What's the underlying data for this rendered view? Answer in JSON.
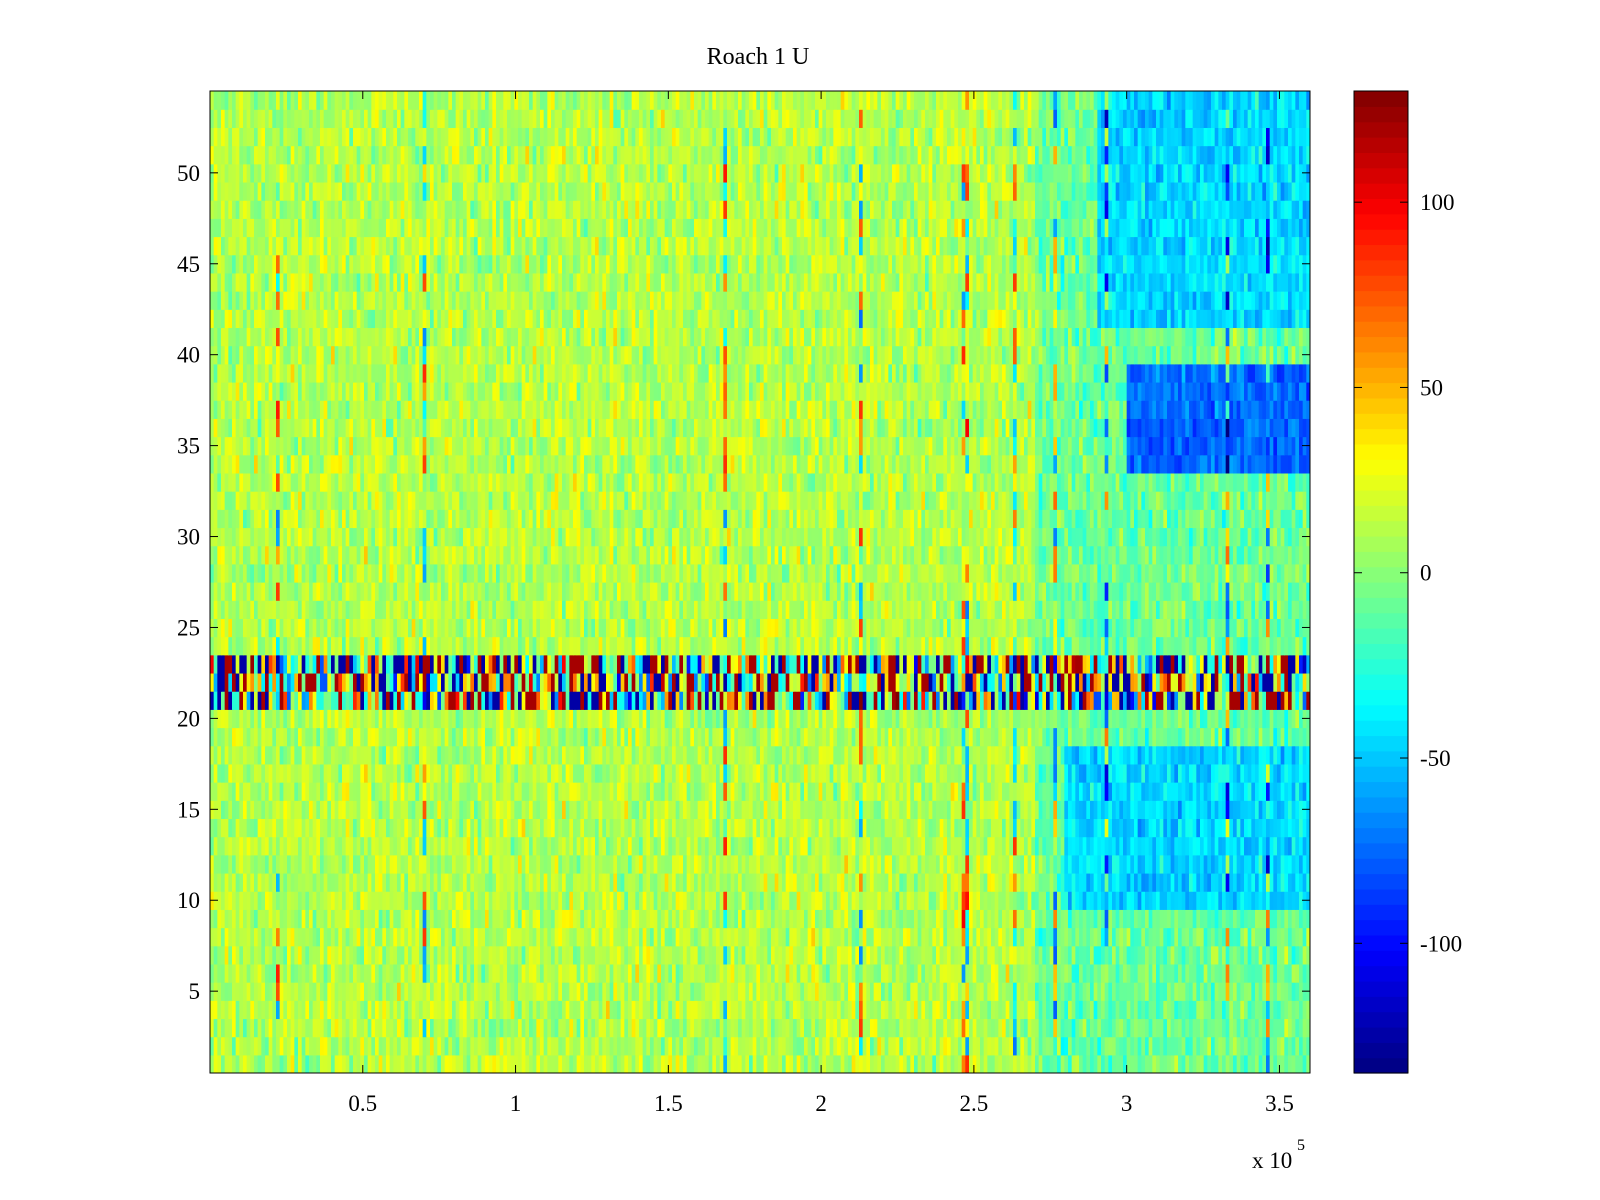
{
  "chart_data": {
    "type": "heatmap",
    "title": "Roach 1 U",
    "xlabel": "",
    "ylabel": "",
    "colormap": "jet",
    "xlim": [
      0,
      360000
    ],
    "ylim": [
      0.5,
      54.5
    ],
    "x_exponent_label": "x 10",
    "x_exponent_power": "5",
    "x_ticks": [
      {
        "value": 50000,
        "label": "0.5"
      },
      {
        "value": 100000,
        "label": "1"
      },
      {
        "value": 150000,
        "label": "1.5"
      },
      {
        "value": 200000,
        "label": "2"
      },
      {
        "value": 250000,
        "label": "2.5"
      },
      {
        "value": 300000,
        "label": "3"
      },
      {
        "value": 350000,
        "label": "3.5"
      }
    ],
    "y_ticks": [
      {
        "value": 5,
        "label": "5"
      },
      {
        "value": 10,
        "label": "10"
      },
      {
        "value": 15,
        "label": "15"
      },
      {
        "value": 20,
        "label": "20"
      },
      {
        "value": 25,
        "label": "25"
      },
      {
        "value": 30,
        "label": "30"
      },
      {
        "value": 35,
        "label": "35"
      },
      {
        "value": 40,
        "label": "40"
      },
      {
        "value": 45,
        "label": "45"
      },
      {
        "value": 50,
        "label": "50"
      }
    ],
    "colorbar": {
      "clim": [
        -135,
        130
      ],
      "ticks": [
        {
          "value": 100,
          "label": "100"
        },
        {
          "value": 50,
          "label": "50"
        },
        {
          "value": 0,
          "label": "0"
        },
        {
          "value": -50,
          "label": "-50"
        },
        {
          "value": -100,
          "label": "-100"
        }
      ]
    },
    "rows": 54,
    "row_bands": [
      {
        "rows": [
          21,
          23
        ],
        "description_value": "high variance band, values alternating between about -130 and 130"
      },
      {
        "rows": [
          34,
          39
        ],
        "x_from": 300000,
        "mean_value": -75
      },
      {
        "rows": [
          10,
          18
        ],
        "x_from": 280000,
        "mean_value": -45
      },
      {
        "rows": [
          42,
          54
        ],
        "x_from": 290000,
        "mean_value": -45
      }
    ],
    "typical_value_range": [
      -20,
      40
    ]
  }
}
